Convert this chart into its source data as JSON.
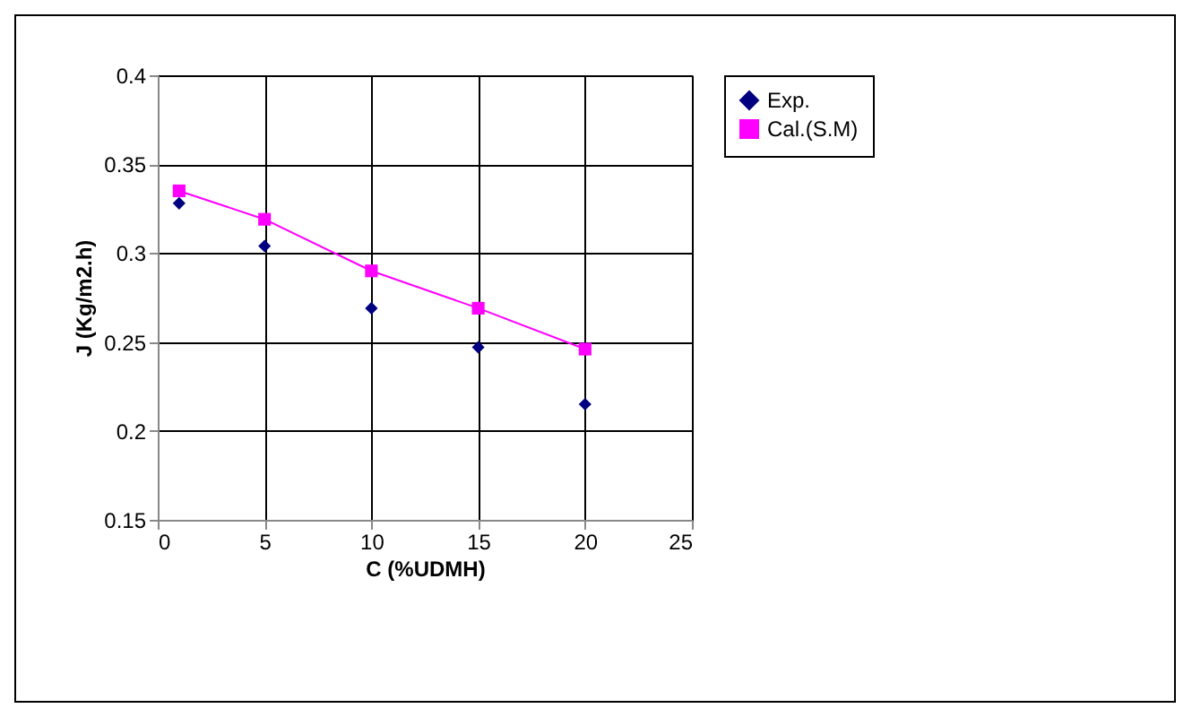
{
  "chart_data": {
    "type": "scatter",
    "xlabel": "C (%UDMH)",
    "ylabel": "J (Kg/m2.h)",
    "x": [
      1,
      5,
      10,
      15,
      20
    ],
    "series": [
      {
        "name": "Exp.",
        "color": "#000080",
        "marker": "diamond",
        "values": [
          0.328,
          0.304,
          0.269,
          0.247,
          0.215
        ]
      },
      {
        "name": "Cal.(S.M)",
        "type": "line",
        "color": "#ff00ff",
        "marker": "square",
        "values": [
          0.335,
          0.319,
          0.29,
          0.269,
          0.246
        ]
      }
    ],
    "xlim": [
      0,
      25
    ],
    "xticks": [
      0,
      5,
      10,
      15,
      20,
      25
    ],
    "ylim": [
      0.15,
      0.4
    ],
    "yticks": [
      0.15,
      0.2,
      0.25,
      0.3,
      0.35,
      0.4
    ],
    "grid": true,
    "legend": "right"
  }
}
